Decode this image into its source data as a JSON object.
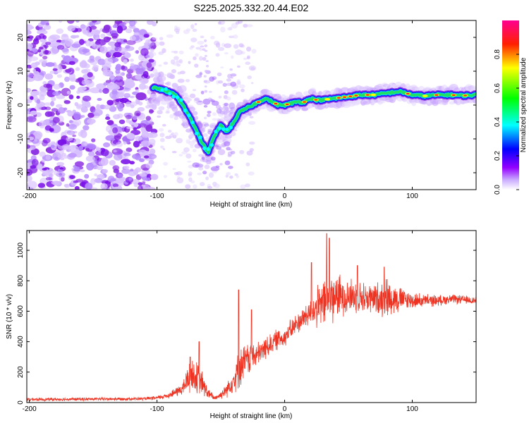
{
  "title": "S225.2025.332.20.44.E02",
  "chart_data": [
    {
      "type": "heatmap",
      "name": "spectrogram",
      "xlabel": "Height of straight line (km)",
      "ylabel": "Frequency (Hz)",
      "xlim": [
        -202,
        150
      ],
      "ylim": [
        -25,
        25
      ],
      "x_ticks": [
        -200,
        -100,
        0,
        100
      ],
      "x_tick_labels": [
        "-200",
        "-100",
        "0",
        "100"
      ],
      "y_ticks": [
        -20,
        -10,
        0,
        10,
        20
      ],
      "y_tick_labels": [
        "-20",
        "-10",
        "0",
        "10",
        "20"
      ],
      "colorbar": {
        "label": "Normalized spectral amplitude",
        "range": [
          0,
          1
        ],
        "ticks": [
          0.0,
          0.2,
          0.4,
          0.6,
          0.8
        ],
        "tick_labels": [
          "0.0",
          "0.2",
          "0.4",
          "0.6",
          "0.8"
        ],
        "colors": [
          "#ffffff",
          "#9400ff",
          "#0000ff",
          "#00ffff",
          "#00ff00",
          "#ffff00",
          "#ff0000",
          "#ff00a0"
        ]
      },
      "ridge": {
        "name": "dominant frequency trace",
        "x": [
          -100,
          -92,
          -85,
          -80,
          -75,
          -70,
          -65,
          -60,
          -55,
          -50,
          -45,
          -40,
          -35,
          -30,
          -25,
          -20,
          -15,
          -10,
          -5,
          0,
          5,
          10,
          15,
          20,
          25,
          30,
          35,
          40,
          50,
          60,
          70,
          80,
          90,
          100,
          110,
          120,
          130,
          140,
          150
        ],
        "y": [
          5,
          4,
          3,
          0,
          -3,
          -7,
          -11,
          -14,
          -9,
          -6,
          -8,
          -5,
          -2,
          -1,
          0,
          1,
          2,
          1,
          0,
          0,
          0.5,
          1,
          0.8,
          2,
          1.5,
          1.5,
          1.8,
          2,
          2.5,
          3,
          3,
          3.5,
          4,
          3,
          2.7,
          3,
          3,
          2.8,
          3
        ]
      }
    },
    {
      "type": "line",
      "name": "snr",
      "xlabel": "Height of straight line (km)",
      "ylabel": "SNR (10 * v/v)",
      "xlim": [
        -202,
        150
      ],
      "ylim": [
        0,
        1130
      ],
      "x_ticks": [
        -200,
        -100,
        0,
        100
      ],
      "x_tick_labels": [
        "-200",
        "-100",
        "0",
        "100"
      ],
      "y_ticks": [
        0,
        200,
        400,
        600,
        800,
        1000
      ],
      "y_tick_labels": [
        "0",
        "200",
        "400",
        "600",
        "800",
        "1000"
      ],
      "color": "#ee3322",
      "envelope": {
        "x": [
          -202,
          -110,
          -100,
          -90,
          -80,
          -74,
          -70,
          -65,
          -60,
          -55,
          -50,
          -45,
          -40,
          -35,
          -30,
          -25,
          -20,
          -15,
          -10,
          -5,
          0,
          5,
          10,
          15,
          20,
          25,
          30,
          35,
          40,
          45,
          50,
          60,
          70,
          80,
          90,
          100,
          110,
          120,
          130,
          150
        ],
        "mean": [
          20,
          25,
          30,
          50,
          90,
          180,
          170,
          130,
          60,
          30,
          50,
          90,
          150,
          230,
          280,
          300,
          320,
          360,
          390,
          420,
          430,
          480,
          520,
          560,
          590,
          620,
          650,
          680,
          700,
          700,
          700,
          690,
          680,
          690,
          680,
          670,
          670,
          670,
          680,
          670
        ],
        "amplitude": [
          12,
          12,
          15,
          25,
          50,
          140,
          130,
          100,
          40,
          20,
          30,
          60,
          100,
          150,
          130,
          110,
          90,
          90,
          80,
          80,
          70,
          80,
          80,
          90,
          100,
          150,
          180,
          200,
          180,
          150,
          140,
          120,
          120,
          150,
          100,
          60,
          50,
          40,
          35,
          30
        ]
      },
      "peaks": [
        {
          "x": -74,
          "y": 300
        },
        {
          "x": -67,
          "y": 400
        },
        {
          "x": -36,
          "y": 740
        },
        {
          "x": -26,
          "y": 610
        },
        {
          "x": 21,
          "y": 920
        },
        {
          "x": 33,
          "y": 1110
        },
        {
          "x": 35,
          "y": 1080
        },
        {
          "x": 57,
          "y": 900
        },
        {
          "x": 78,
          "y": 890
        }
      ]
    }
  ]
}
